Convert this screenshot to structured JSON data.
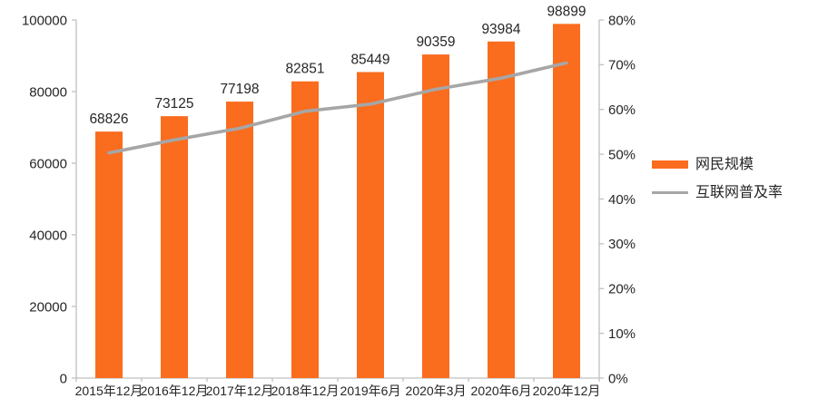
{
  "chart_data": {
    "type": "combo",
    "title": "",
    "categories": [
      "2015年12月",
      "2016年12月",
      "2017年12月",
      "2018年12月",
      "2019年6月",
      "2020年3月",
      "2020年6月",
      "2020年12月"
    ],
    "series": [
      {
        "name": "网民规模",
        "type": "bar",
        "axis": "left",
        "color": "#FA6C1E",
        "values": [
          68826,
          73125,
          77198,
          82851,
          85449,
          90359,
          93984,
          98899
        ],
        "data_labels": [
          68826,
          73125,
          77198,
          82851,
          85449,
          90359,
          93984,
          98899
        ]
      },
      {
        "name": "互联网普及率",
        "type": "line",
        "axis": "right",
        "color": "#A6A6A6",
        "values": [
          50.3,
          53.2,
          55.8,
          59.6,
          61.2,
          64.5,
          67.0,
          70.4
        ],
        "data_labels": null
      }
    ],
    "left_axis": {
      "min": 0,
      "max": 100000,
      "step": 20000,
      "tick_labels": [
        "0",
        "20000",
        "40000",
        "60000",
        "80000",
        "100000"
      ]
    },
    "right_axis": {
      "min": 0,
      "max": 80,
      "step": 10,
      "unit": "%",
      "tick_labels": [
        "0%",
        "10%",
        "20%",
        "30%",
        "40%",
        "50%",
        "60%",
        "70%",
        "80%"
      ]
    },
    "grid": false,
    "legend_position": "right"
  },
  "legend": {
    "items": [
      {
        "label": "网民规模",
        "marker": "bar-swatch",
        "color": "#FA6C1E"
      },
      {
        "label": "互联网普及率",
        "marker": "line-swatch",
        "color": "#A6A6A6"
      }
    ]
  },
  "style_colors": {
    "bar": "#FA6C1E",
    "line": "#A6A6A6",
    "axis_line": "#C0C0C0",
    "text": "#262626",
    "background": "#FFFFFF"
  }
}
